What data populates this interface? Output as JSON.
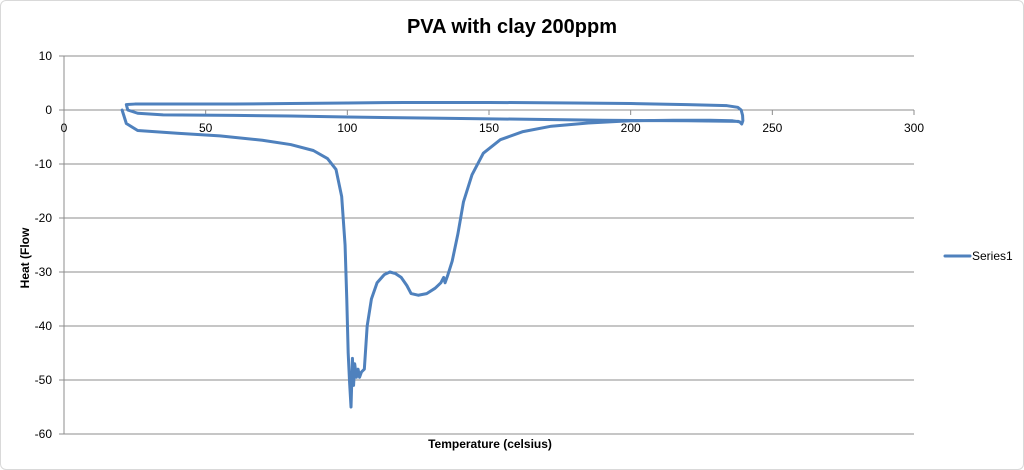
{
  "chart_data": {
    "type": "line",
    "title": "PVA with clay 200ppm",
    "xlabel": "Temperature (celsius)",
    "ylabel": "Heat (Flow",
    "xlim": [
      0,
      300
    ],
    "ylim": [
      -60,
      10
    ],
    "x_ticks": [
      "0",
      "50",
      "100",
      "150",
      "200",
      "250",
      "300"
    ],
    "y_ticks": [
      "10",
      "0",
      "-10",
      "-20",
      "-30",
      "-40",
      "-50",
      "-60"
    ],
    "grid": "horizontal major gridlines",
    "legend_position": "right",
    "series": [
      {
        "name": "Series1",
        "color": "#4f81bd",
        "points": [
          [
            20.5,
            0.0
          ],
          [
            22,
            -2.5
          ],
          [
            26,
            -3.8
          ],
          [
            40,
            -4.3
          ],
          [
            55,
            -4.8
          ],
          [
            70,
            -5.6
          ],
          [
            80,
            -6.4
          ],
          [
            88,
            -7.5
          ],
          [
            93,
            -9.0
          ],
          [
            96,
            -11.0
          ],
          [
            98,
            -16.0
          ],
          [
            99.2,
            -25.0
          ],
          [
            99.8,
            -35.0
          ],
          [
            100.3,
            -45.0
          ],
          [
            100.8,
            -50.5
          ],
          [
            101.3,
            -55.0
          ],
          [
            101.8,
            -46.0
          ],
          [
            102.2,
            -51.0
          ],
          [
            102.6,
            -47.0
          ],
          [
            103.2,
            -49.5
          ],
          [
            103.8,
            -48.0
          ],
          [
            104.3,
            -49.5
          ],
          [
            105.0,
            -48.5
          ],
          [
            106.0,
            -48.0
          ],
          [
            107.0,
            -40.0
          ],
          [
            108.5,
            -35.0
          ],
          [
            110.5,
            -32.0
          ],
          [
            113,
            -30.5
          ],
          [
            115,
            -30.0
          ],
          [
            117,
            -30.3
          ],
          [
            119,
            -31.0
          ],
          [
            121,
            -32.5
          ],
          [
            122.5,
            -34.0
          ],
          [
            125,
            -34.3
          ],
          [
            128,
            -34.0
          ],
          [
            131,
            -33.0
          ],
          [
            133,
            -32.0
          ],
          [
            134,
            -31.0
          ],
          [
            134.5,
            -32.0
          ],
          [
            135.5,
            -30.5
          ],
          [
            137,
            -28.0
          ],
          [
            139,
            -23.0
          ],
          [
            141,
            -17.0
          ],
          [
            144,
            -12.0
          ],
          [
            148,
            -8.0
          ],
          [
            154,
            -5.5
          ],
          [
            162,
            -4.0
          ],
          [
            172,
            -3.0
          ],
          [
            185,
            -2.4
          ],
          [
            200,
            -2.0
          ],
          [
            215,
            -1.9
          ],
          [
            228,
            -1.9
          ],
          [
            236,
            -2.0
          ],
          [
            238.5,
            -2.2
          ],
          [
            239.2,
            -2.6
          ],
          [
            239.6,
            -2.0
          ],
          [
            239.5,
            -1.0
          ],
          [
            239.0,
            0.0
          ],
          [
            237.8,
            0.5
          ],
          [
            234,
            0.8
          ],
          [
            220,
            1.0
          ],
          [
            200,
            1.2
          ],
          [
            180,
            1.3
          ],
          [
            150,
            1.4
          ],
          [
            120,
            1.4
          ],
          [
            100,
            1.3
          ],
          [
            80,
            1.2
          ],
          [
            60,
            1.1
          ],
          [
            40,
            1.1
          ],
          [
            25,
            1.1
          ],
          [
            22,
            1.0
          ],
          [
            22.5,
            0.0
          ],
          [
            26,
            -0.6
          ],
          [
            35,
            -0.9
          ],
          [
            60,
            -1.0
          ],
          [
            80,
            -1.1
          ],
          [
            100,
            -1.3
          ],
          [
            130,
            -1.5
          ],
          [
            160,
            -1.7
          ],
          [
            190,
            -1.9
          ],
          [
            220,
            -2.0
          ],
          [
            238,
            -2.1
          ]
        ]
      }
    ]
  }
}
